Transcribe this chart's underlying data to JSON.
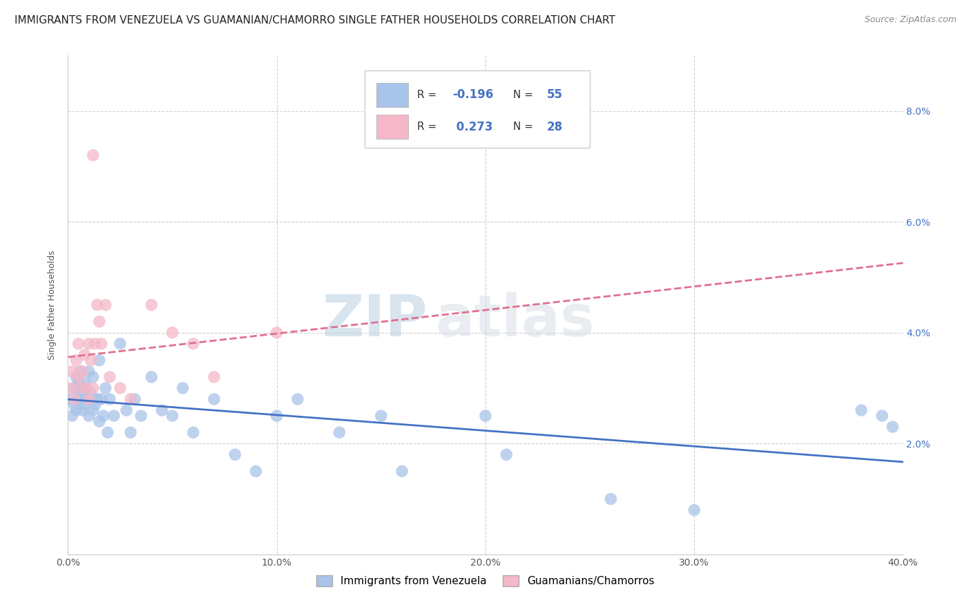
{
  "title": "IMMIGRANTS FROM VENEZUELA VS GUAMANIAN/CHAMORRO SINGLE FATHER HOUSEHOLDS CORRELATION CHART",
  "source": "Source: ZipAtlas.com",
  "ylabel": "Single Father Households",
  "watermark_zip": "ZIP",
  "watermark_atlas": "atlas",
  "blue_label": "Immigrants from Venezuela",
  "pink_label": "Guamanians/Chamorros",
  "blue_R": -0.196,
  "blue_N": 55,
  "pink_R": 0.273,
  "pink_N": 28,
  "xlim": [
    0.0,
    0.4
  ],
  "ylim": [
    0.0,
    0.09
  ],
  "xtick_vals": [
    0.0,
    0.1,
    0.2,
    0.3,
    0.4
  ],
  "xtick_labels": [
    "0.0%",
    "10.0%",
    "20.0%",
    "30.0%",
    "40.0%"
  ],
  "ytick_vals": [
    0.0,
    0.02,
    0.04,
    0.06,
    0.08
  ],
  "ytick_labels_right": [
    "",
    "2.0%",
    "4.0%",
    "6.0%",
    "8.0%"
  ],
  "blue_scatter_color": "#a8c4e8",
  "blue_line_color": "#4472c4",
  "pink_scatter_color": "#f4b8c8",
  "pink_line_color": "#e07090",
  "title_fontsize": 11,
  "axis_fontsize": 9,
  "tick_fontsize": 10,
  "background_color": "#ffffff",
  "grid_color": "#d0d0d0",
  "right_ytick_color": "#4472c4",
  "blue_scatter_x": [
    0.001,
    0.002,
    0.003,
    0.003,
    0.004,
    0.004,
    0.005,
    0.005,
    0.006,
    0.006,
    0.007,
    0.007,
    0.008,
    0.008,
    0.009,
    0.01,
    0.01,
    0.011,
    0.012,
    0.012,
    0.013,
    0.014,
    0.015,
    0.015,
    0.016,
    0.017,
    0.018,
    0.019,
    0.02,
    0.022,
    0.025,
    0.028,
    0.03,
    0.032,
    0.035,
    0.04,
    0.045,
    0.05,
    0.055,
    0.06,
    0.07,
    0.08,
    0.09,
    0.1,
    0.11,
    0.13,
    0.15,
    0.16,
    0.2,
    0.21,
    0.26,
    0.3,
    0.38,
    0.39,
    0.395
  ],
  "blue_scatter_y": [
    0.028,
    0.025,
    0.03,
    0.027,
    0.032,
    0.026,
    0.031,
    0.028,
    0.029,
    0.033,
    0.026,
    0.03,
    0.027,
    0.031,
    0.028,
    0.033,
    0.025,
    0.029,
    0.026,
    0.032,
    0.027,
    0.028,
    0.035,
    0.024,
    0.028,
    0.025,
    0.03,
    0.022,
    0.028,
    0.025,
    0.038,
    0.026,
    0.022,
    0.028,
    0.025,
    0.032,
    0.026,
    0.025,
    0.03,
    0.022,
    0.028,
    0.018,
    0.015,
    0.025,
    0.028,
    0.022,
    0.025,
    0.015,
    0.025,
    0.018,
    0.01,
    0.008,
    0.026,
    0.025,
    0.023
  ],
  "pink_scatter_x": [
    0.001,
    0.002,
    0.003,
    0.004,
    0.005,
    0.005,
    0.006,
    0.007,
    0.008,
    0.009,
    0.01,
    0.01,
    0.011,
    0.012,
    0.013,
    0.014,
    0.015,
    0.016,
    0.018,
    0.02,
    0.025,
    0.03,
    0.04,
    0.05,
    0.06,
    0.07,
    0.1,
    0.012
  ],
  "pink_scatter_y": [
    0.03,
    0.033,
    0.028,
    0.035,
    0.038,
    0.032,
    0.03,
    0.033,
    0.036,
    0.03,
    0.038,
    0.028,
    0.035,
    0.03,
    0.038,
    0.045,
    0.042,
    0.038,
    0.045,
    0.032,
    0.03,
    0.028,
    0.045,
    0.04,
    0.038,
    0.032,
    0.04,
    0.072
  ]
}
